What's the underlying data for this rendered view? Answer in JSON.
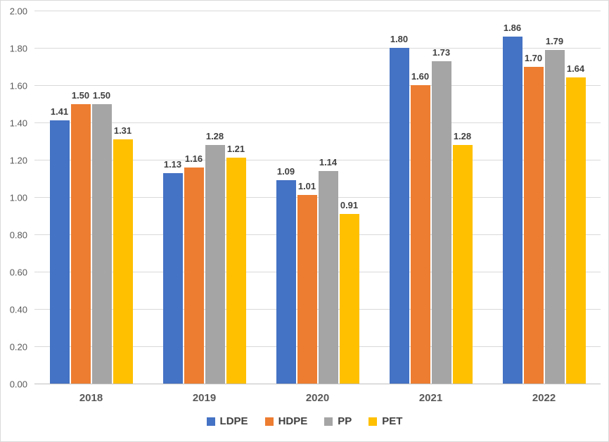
{
  "chart_data": {
    "type": "bar",
    "title": "",
    "categories": [
      "2018",
      "2019",
      "2020",
      "2021",
      "2022"
    ],
    "series": [
      {
        "name": "LDPE",
        "color": "#4472C4",
        "values": [
          1.41,
          1.13,
          1.09,
          1.8,
          1.86
        ]
      },
      {
        "name": "HDPE",
        "color": "#ED7D31",
        "values": [
          1.5,
          1.16,
          1.01,
          1.6,
          1.7
        ]
      },
      {
        "name": "PP",
        "color": "#A5A5A5",
        "values": [
          1.5,
          1.28,
          1.14,
          1.73,
          1.79
        ]
      },
      {
        "name": "PET",
        "color": "#FFC000",
        "values": [
          1.31,
          1.21,
          0.91,
          1.28,
          1.64
        ]
      }
    ],
    "ylim": [
      0.0,
      2.0
    ],
    "y_tick_step": 0.2,
    "y_ticks": [
      "0.00",
      "0.20",
      "0.40",
      "0.60",
      "0.80",
      "1.00",
      "1.20",
      "1.40",
      "1.60",
      "1.80",
      "2.00"
    ],
    "data_labels": true,
    "grid": true,
    "legend_position": "bottom",
    "xlabel": "",
    "ylabel": ""
  },
  "colors": {
    "gridline": "#D9D9D9",
    "axis_line": "#BFBFBF",
    "tick_label": "#595959",
    "data_label": "#404040",
    "legend_label": "#404040",
    "chart_border": "#D9D9D9",
    "background": "#FFFFFF"
  }
}
